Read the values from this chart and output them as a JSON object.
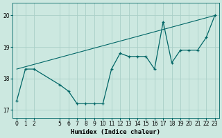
{
  "title": "",
  "xlabel": "Humidex (Indice chaleur)",
  "background_color": "#cce8e0",
  "line_color": "#006666",
  "grid_color": "#aacfc8",
  "hours": [
    0,
    1,
    2,
    5,
    6,
    7,
    8,
    9,
    10,
    11,
    12,
    13,
    14,
    15,
    16,
    17,
    18,
    19,
    20,
    21,
    22,
    23
  ],
  "humidex": [
    17.3,
    18.3,
    18.3,
    17.8,
    17.6,
    17.2,
    17.2,
    17.2,
    17.2,
    18.3,
    18.8,
    18.7,
    18.7,
    18.7,
    18.3,
    19.8,
    18.5,
    18.9,
    18.9,
    18.9,
    19.3,
    20.0
  ],
  "trend_x": [
    0,
    23
  ],
  "trend_y": [
    18.3,
    20.0
  ],
  "ylim": [
    16.75,
    20.4
  ],
  "xlim": [
    -0.5,
    23.5
  ],
  "xtick_positions": [
    0,
    1,
    2,
    5,
    6,
    7,
    8,
    9,
    10,
    11,
    12,
    13,
    14,
    15,
    16,
    17,
    18,
    19,
    20,
    21,
    22,
    23
  ],
  "xtick_labels": [
    "0",
    "1",
    "2",
    "5",
    "6",
    "7",
    "8",
    "9",
    "10",
    "11",
    "12",
    "13",
    "14",
    "15",
    "16",
    "17",
    "18",
    "19",
    "20",
    "21",
    "22",
    "23"
  ],
  "ytick_values": [
    17,
    18,
    19,
    20
  ],
  "label_fontsize": 6.5,
  "tick_fontsize": 5.5
}
